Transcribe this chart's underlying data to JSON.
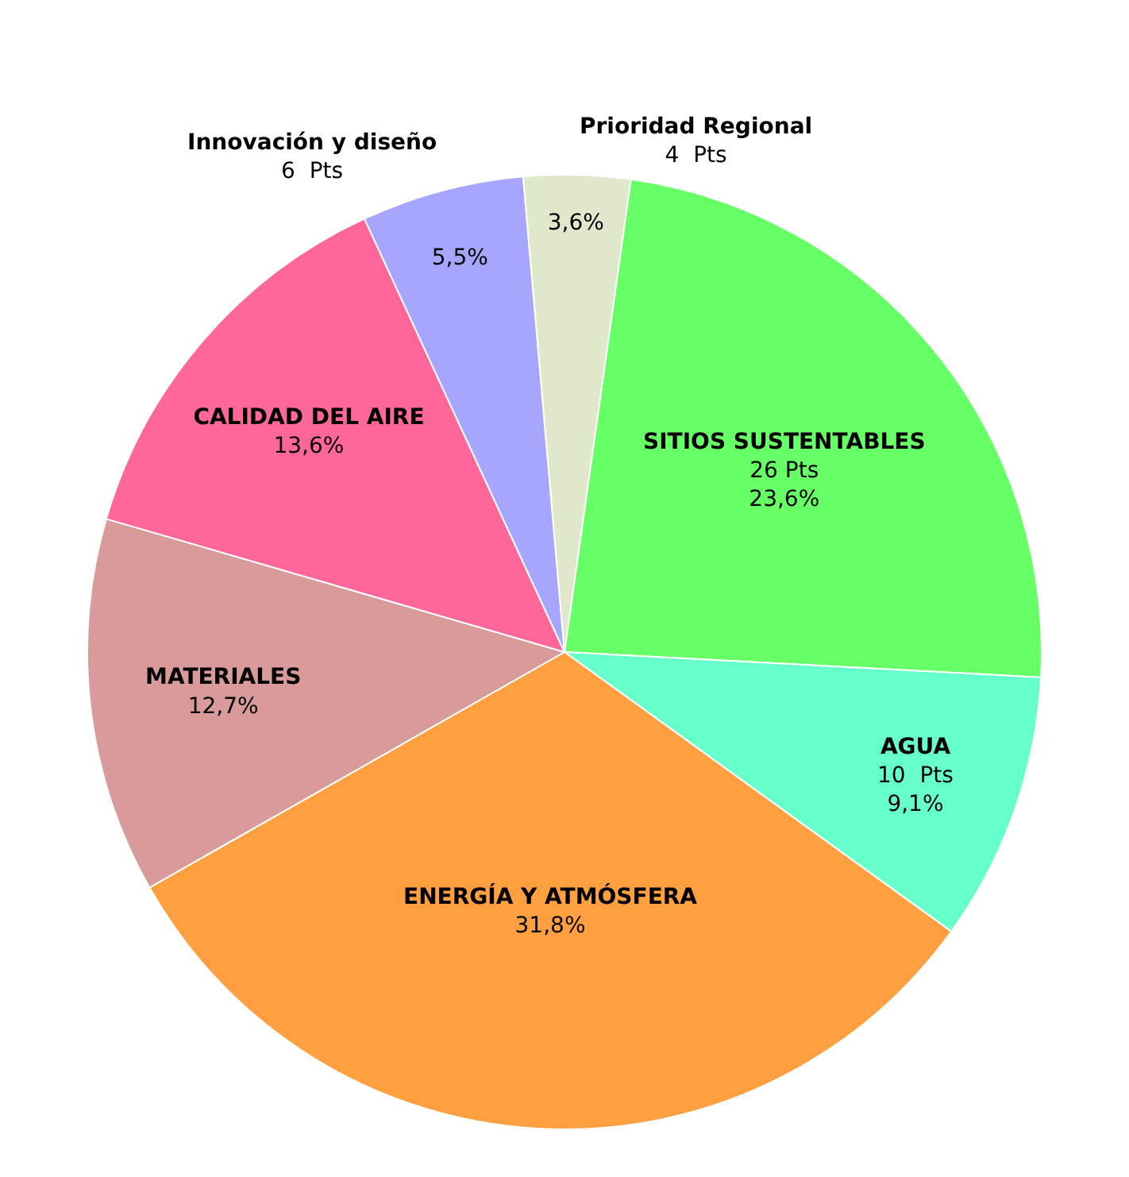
{
  "chart_data": {
    "type": "pie",
    "categories": [
      "SITIOS SUSTENTABLES",
      "AGUA",
      "ENERGÍA Y ATMÓSFERA",
      "MATERIALES",
      "CALIDAD DEL AIRE",
      "Innovación y diseño",
      "Prioridad Regional"
    ],
    "values": [
      23.6,
      9.1,
      31.8,
      12.7,
      13.6,
      5.5,
      3.6
    ],
    "value_labels": [
      "23,6%",
      "9,1%",
      "31,8%",
      "12,7%",
      "13,6%",
      "5,5%",
      "3,6%"
    ],
    "colors": [
      "#66ff66",
      "#66ffcc",
      "#ff9f3f",
      "#d99a9a",
      "#ff6699",
      "#a6a6ff",
      "#e0e8cc"
    ],
    "annotations": [
      {
        "text": "26 Pts",
        "x": "SITIOS SUSTENTABLES"
      },
      {
        "text": "10  Pts",
        "x": "AGUA"
      },
      {
        "text": "6  Pts",
        "x": "Innovación y diseño"
      },
      {
        "text": "4  Pts",
        "x": "Prioridad Regional"
      }
    ],
    "legend": false
  }
}
